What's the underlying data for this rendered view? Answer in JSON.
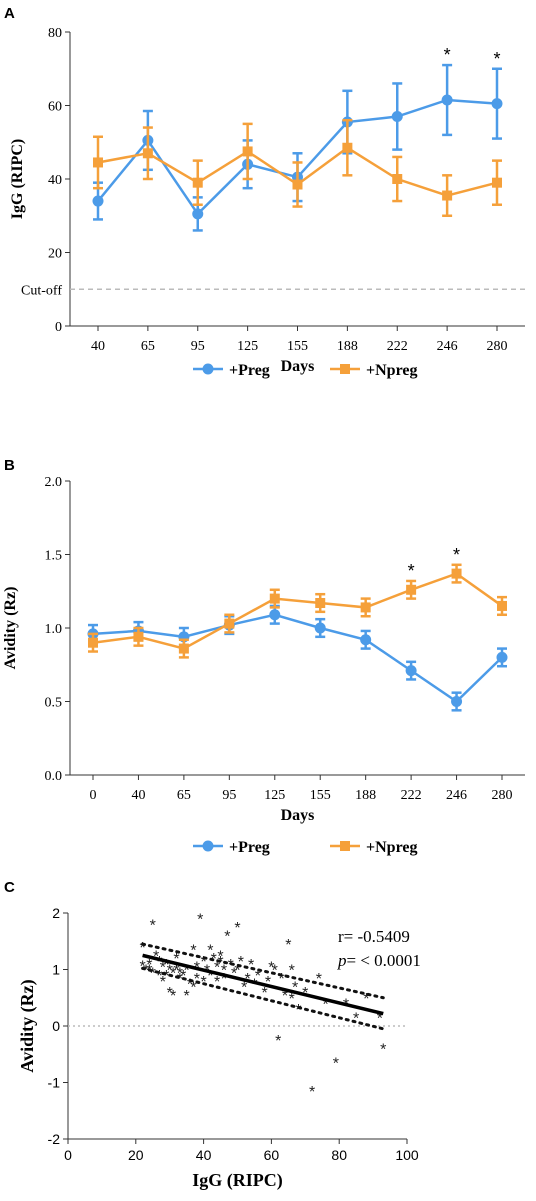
{
  "colors": {
    "preg": "#4c9be8",
    "npreg": "#f5a03a",
    "axis": "#333333",
    "cutoff": "#bbbbbb",
    "scatter": "#222222"
  },
  "chart_data": [
    {
      "panel": "A",
      "type": "line",
      "xlabel": "Days",
      "ylabel": "IgG (RIPC)",
      "categories": [
        "40",
        "65",
        "95",
        "125",
        "155",
        "188",
        "222",
        "246",
        "280"
      ],
      "ylim": [
        0,
        80
      ],
      "yticks": [
        0,
        20,
        40,
        60,
        80
      ],
      "cutoff": {
        "label": "Cut-off",
        "value": 10
      },
      "legend": "bottom",
      "series": [
        {
          "name": "+Preg",
          "marker": "circle",
          "values": [
            34,
            50.5,
            30.5,
            44,
            40.5,
            55.5,
            57,
            61.5,
            60.5
          ],
          "errors": [
            5,
            8,
            4.5,
            6.5,
            6.5,
            8.5,
            9,
            9.5,
            9.5
          ]
        },
        {
          "name": "+Npreg",
          "marker": "square",
          "values": [
            44.5,
            47,
            39,
            47.5,
            38.5,
            48.5,
            40,
            35.5,
            39
          ],
          "errors": [
            7,
            7,
            6,
            7.5,
            6,
            7.5,
            6,
            5.5,
            6
          ]
        }
      ],
      "significance": [
        {
          "category": "246",
          "label": "*"
        },
        {
          "category": "280",
          "label": "*"
        }
      ]
    },
    {
      "panel": "B",
      "type": "line",
      "xlabel": "Days",
      "ylabel": "Avidity (Rz)",
      "categories": [
        "0",
        "40",
        "65",
        "95",
        "125",
        "155",
        "188",
        "222",
        "246",
        "280"
      ],
      "ylim": [
        0,
        2
      ],
      "yticks": [
        "0.0",
        "0.5",
        "1.0",
        "1.5",
        "2.0"
      ],
      "legend": "bottom",
      "series": [
        {
          "name": "+Preg",
          "marker": "circle",
          "values": [
            0.96,
            0.98,
            0.94,
            1.02,
            1.09,
            1.0,
            0.92,
            0.71,
            0.5,
            0.8
          ],
          "errors": [
            0.06,
            0.06,
            0.06,
            0.06,
            0.06,
            0.06,
            0.06,
            0.06,
            0.06,
            0.06
          ]
        },
        {
          "name": "+Npreg",
          "marker": "square",
          "values": [
            0.9,
            0.94,
            0.86,
            1.03,
            1.2,
            1.17,
            1.14,
            1.26,
            1.37,
            1.15
          ],
          "errors": [
            0.06,
            0.06,
            0.06,
            0.06,
            0.06,
            0.06,
            0.06,
            0.06,
            0.06,
            0.06
          ]
        }
      ],
      "significance": [
        {
          "category": "222",
          "label": "*"
        },
        {
          "category": "246",
          "label": "*"
        }
      ]
    },
    {
      "panel": "C",
      "type": "scatter",
      "xlabel": "IgG (RIPC)",
      "ylabel": "Avidity (Rz)",
      "xlim": [
        0,
        100
      ],
      "ylim": [
        -2,
        2
      ],
      "xticks": [
        0,
        20,
        40,
        60,
        80,
        100
      ],
      "yticks": [
        -2,
        -1,
        0,
        1,
        2
      ],
      "annotation": {
        "r": "r= -0.5409",
        "p_label": "p",
        "p_value": "= < 0.0001"
      },
      "regression": {
        "x": [
          22,
          93
        ],
        "y": [
          1.25,
          0.22
        ]
      },
      "confidence_band": {
        "upper": {
          "x": [
            22,
            93
          ],
          "y": [
            1.45,
            0.5
          ]
        },
        "lower": {
          "x": [
            22,
            93
          ],
          "y": [
            1.02,
            -0.05
          ]
        }
      },
      "points": [
        [
          22,
          1.4
        ],
        [
          22,
          1.07
        ],
        [
          23,
          1.0
        ],
        [
          24,
          1.1
        ],
        [
          24,
          1.0
        ],
        [
          25,
          1.8
        ],
        [
          25,
          0.95
        ],
        [
          26,
          1.25
        ],
        [
          27,
          1.15
        ],
        [
          27,
          0.9
        ],
        [
          28,
          1.05
        ],
        [
          28,
          0.8
        ],
        [
          29,
          1.1
        ],
        [
          29,
          0.9
        ],
        [
          30,
          0.6
        ],
        [
          30,
          1.0
        ],
        [
          31,
          0.55
        ],
        [
          31,
          0.95
        ],
        [
          32,
          1.2
        ],
        [
          32,
          1.0
        ],
        [
          33,
          0.85
        ],
        [
          33,
          0.95
        ],
        [
          34,
          0.9
        ],
        [
          35,
          1.0
        ],
        [
          35,
          0.55
        ],
        [
          36,
          0.75
        ],
        [
          37,
          1.35
        ],
        [
          37,
          0.7
        ],
        [
          38,
          1.05
        ],
        [
          38,
          0.85
        ],
        [
          39,
          1.9
        ],
        [
          40,
          1.15
        ],
        [
          40,
          0.8
        ],
        [
          41,
          1.0
        ],
        [
          42,
          1.35
        ],
        [
          42,
          0.9
        ],
        [
          43,
          1.2
        ],
        [
          44,
          1.05
        ],
        [
          44,
          0.8
        ],
        [
          45,
          1.25
        ],
        [
          45,
          1.15
        ],
        [
          46,
          1.0
        ],
        [
          46,
          0.85
        ],
        [
          47,
          1.6
        ],
        [
          48,
          1.1
        ],
        [
          49,
          0.95
        ],
        [
          50,
          1.75
        ],
        [
          50,
          1.0
        ],
        [
          51,
          1.15
        ],
        [
          52,
          0.7
        ],
        [
          53,
          0.85
        ],
        [
          54,
          1.1
        ],
        [
          55,
          0.75
        ],
        [
          56,
          0.9
        ],
        [
          58,
          0.6
        ],
        [
          59,
          0.8
        ],
        [
          60,
          1.05
        ],
        [
          61,
          1.0
        ],
        [
          62,
          -0.25
        ],
        [
          63,
          0.85
        ],
        [
          64,
          0.55
        ],
        [
          65,
          1.45
        ],
        [
          66,
          1.0
        ],
        [
          66,
          0.5
        ],
        [
          67,
          0.7
        ],
        [
          68,
          0.3
        ],
        [
          70,
          0.6
        ],
        [
          72,
          -1.15
        ],
        [
          74,
          0.85
        ],
        [
          76,
          0.4
        ],
        [
          79,
          -0.65
        ],
        [
          82,
          0.4
        ],
        [
          85,
          0.15
        ],
        [
          88,
          0.5
        ],
        [
          92,
          0.15
        ],
        [
          93,
          -0.4
        ]
      ]
    }
  ]
}
